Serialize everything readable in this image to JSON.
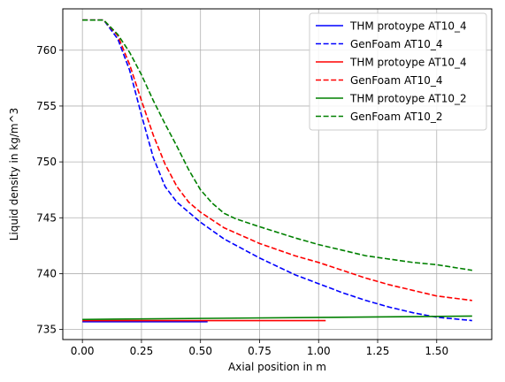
{
  "chart_data": {
    "type": "line",
    "xlabel": "Axial position in m",
    "ylabel": "Liquid density in kg/m^3",
    "xlim": [
      -0.083,
      1.733
    ],
    "ylim": [
      734.1,
      763.7
    ],
    "xticks": [
      0.0,
      0.25,
      0.5,
      0.75,
      1.0,
      1.25,
      1.5
    ],
    "xtick_labels": [
      "0.00",
      "0.25",
      "0.50",
      "0.75",
      "1.00",
      "1.25",
      "1.50"
    ],
    "yticks": [
      735,
      740,
      745,
      750,
      755,
      760
    ],
    "ytick_labels": [
      "735",
      "740",
      "745",
      "750",
      "755",
      "760"
    ],
    "grid": true,
    "legend_position": "top-right",
    "series": [
      {
        "name": "THM protoype AT10_4",
        "color": "#0000ff",
        "style": "solid",
        "x": [
          0.0,
          0.53
        ],
        "y": [
          735.7,
          735.7
        ]
      },
      {
        "name": "GenFoam AT10_4",
        "color": "#0000ff",
        "style": "dashed",
        "x": [
          0.0,
          0.09,
          0.15,
          0.2,
          0.25,
          0.3,
          0.35,
          0.4,
          0.5,
          0.6,
          0.75,
          0.9,
          1.0,
          1.1,
          1.2,
          1.3,
          1.4,
          1.5,
          1.65
        ],
        "y": [
          762.7,
          762.7,
          761.0,
          758.2,
          754.2,
          750.4,
          747.8,
          746.4,
          744.6,
          743.1,
          741.4,
          739.9,
          739.1,
          738.3,
          737.6,
          737.0,
          736.5,
          736.1,
          735.8
        ]
      },
      {
        "name": "THM protoype AT10_4",
        "color": "#ff0000",
        "style": "solid",
        "x": [
          0.0,
          1.03
        ],
        "y": [
          735.8,
          735.8
        ]
      },
      {
        "name": "GenFoam AT10_4",
        "color": "#ff0000",
        "style": "dashed",
        "x": [
          0.0,
          0.09,
          0.15,
          0.2,
          0.25,
          0.3,
          0.35,
          0.4,
          0.45,
          0.5,
          0.6,
          0.75,
          0.9,
          1.0,
          1.1,
          1.2,
          1.3,
          1.4,
          1.5,
          1.65
        ],
        "y": [
          762.7,
          762.7,
          761.3,
          758.7,
          755.5,
          752.4,
          749.8,
          747.8,
          746.4,
          745.5,
          744.1,
          742.7,
          741.6,
          741.0,
          740.3,
          739.6,
          739.0,
          738.5,
          738.0,
          737.6
        ]
      },
      {
        "name": "THM protoype AT10_2",
        "color": "#008000",
        "style": "solid",
        "x": [
          0.0,
          1.65
        ],
        "y": [
          735.9,
          736.2
        ]
      },
      {
        "name": "GenFoam AT10_2",
        "color": "#008000",
        "style": "dashed",
        "x": [
          0.0,
          0.09,
          0.15,
          0.2,
          0.25,
          0.3,
          0.35,
          0.4,
          0.45,
          0.5,
          0.55,
          0.6,
          0.65,
          0.75,
          0.9,
          1.0,
          1.1,
          1.2,
          1.3,
          1.4,
          1.5,
          1.65
        ],
        "y": [
          762.7,
          762.7,
          761.4,
          759.8,
          757.8,
          755.5,
          753.4,
          751.4,
          749.3,
          747.5,
          746.3,
          745.4,
          744.9,
          744.2,
          743.2,
          742.6,
          742.1,
          741.6,
          741.3,
          741.0,
          740.8,
          740.3
        ]
      }
    ]
  }
}
